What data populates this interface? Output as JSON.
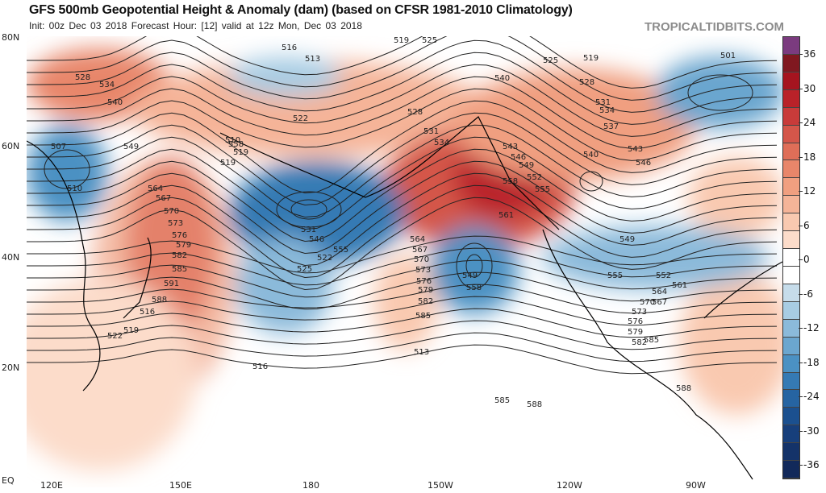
{
  "header": {
    "title": "GFS 500mb Geopotential Height & Anomaly (dam) (based on CFSR 1981-2010 Climatology)",
    "subtitle": "Init: 00z Dec 03 2018   Forecast Hour: [12]   valid at 12z Mon, Dec 03 2018",
    "brand": "TROPICALTIDBITS.COM"
  },
  "axes": {
    "lat": [
      "80N",
      "60N",
      "40N",
      "20N",
      "EQ"
    ],
    "lon": [
      "120E",
      "150E",
      "180",
      "150W",
      "120W",
      "90W"
    ]
  },
  "colorbar": {
    "ticks": [
      "36",
      "30",
      "24",
      "18",
      "12",
      "6",
      "0",
      "-6",
      "-12",
      "-18",
      "-24",
      "-30",
      "-36"
    ],
    "colors": [
      "#7b3b7f",
      "#801820",
      "#a5141f",
      "#b92229",
      "#c83b3a",
      "#d4564a",
      "#df6e58",
      "#e8866a",
      "#f09f80",
      "#f5b498",
      "#f9c9b0",
      "#fcdcca",
      "#ffffff",
      "#ffffff",
      "#c6dcea",
      "#a8cce3",
      "#8bbada",
      "#6ba6cf",
      "#4b91c3",
      "#357ab4",
      "#2664a2",
      "#1b508f",
      "#173f7b",
      "#143369",
      "#12295a"
    ]
  },
  "contours": [
    "519",
    "516",
    "513",
    "522",
    "525",
    "528",
    "531",
    "534",
    "537",
    "540",
    "543",
    "546",
    "549",
    "552",
    "555",
    "558",
    "561",
    "564",
    "567",
    "570",
    "573",
    "576",
    "579",
    "582",
    "585",
    "588",
    "591",
    "507",
    "510",
    "501"
  ],
  "contour_labels": [
    "507",
    "510",
    "513",
    "516",
    "519",
    "522",
    "525",
    "528",
    "534",
    "540",
    "549",
    "558",
    "564",
    "567",
    "570",
    "573",
    "576",
    "579",
    "582",
    "585",
    "591",
    "588",
    "516",
    "519",
    "522",
    "516",
    "513",
    "519",
    "510",
    "519",
    "531",
    "546",
    "555",
    "522",
    "525",
    "528",
    "531",
    "534",
    "540",
    "543",
    "546",
    "549",
    "552",
    "555",
    "558",
    "561",
    "564",
    "567",
    "570",
    "573",
    "576",
    "579",
    "582",
    "585",
    "549",
    "558",
    "519",
    "525",
    "528",
    "531",
    "534",
    "537",
    "540",
    "543",
    "546",
    "549",
    "555",
    "552",
    "561",
    "564",
    "567",
    "570",
    "573",
    "576",
    "579",
    "582",
    "585",
    "588",
    "585",
    "588",
    "501"
  ]
}
